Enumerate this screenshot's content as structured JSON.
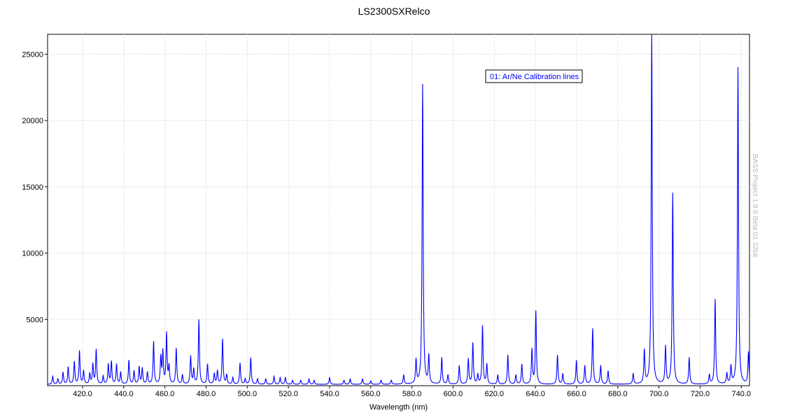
{
  "chart_data": {
    "type": "line",
    "title": "LS2300SXRelco",
    "xlabel": "Wavelength (nm)",
    "ylabel": "",
    "xlim": [
      403,
      744
    ],
    "ylim": [
      0,
      26500
    ],
    "x_ticks": [
      420,
      440,
      460,
      480,
      500,
      520,
      540,
      560,
      580,
      600,
      620,
      640,
      660,
      680,
      700,
      720,
      740
    ],
    "x_tick_labels": [
      "420.0",
      "440.0",
      "460.0",
      "480.0",
      "500.0",
      "520.0",
      "540.0",
      "560.0",
      "580.0",
      "600.0",
      "620.0",
      "640.0",
      "660.0",
      "680.0",
      "700.0",
      "720.0",
      "740.0"
    ],
    "y_ticks": [
      5000,
      10000,
      15000,
      20000,
      25000
    ],
    "y_tick_labels": [
      "5000",
      "10000",
      "15000",
      "20000",
      "25000"
    ],
    "grid": true,
    "legend_position": "top-right",
    "series": [
      {
        "name": "01: Ar/Ne Calibration lines",
        "color": "#0000ff",
        "peaks": [
          [
            405.5,
            600
          ],
          [
            408.0,
            400
          ],
          [
            410.5,
            900
          ],
          [
            413.0,
            1300
          ],
          [
            416.0,
            1700
          ],
          [
            418.5,
            2500
          ],
          [
            420.5,
            1000
          ],
          [
            423.5,
            800
          ],
          [
            425.0,
            1500
          ],
          [
            426.6,
            2600
          ],
          [
            430.0,
            600
          ],
          [
            432.5,
            1500
          ],
          [
            434.0,
            1700
          ],
          [
            436.5,
            1500
          ],
          [
            438.5,
            900
          ],
          [
            442.5,
            1800
          ],
          [
            445.0,
            1000
          ],
          [
            447.5,
            1300
          ],
          [
            449.0,
            1200
          ],
          [
            451.5,
            900
          ],
          [
            454.5,
            3200
          ],
          [
            458.0,
            2000
          ],
          [
            459.0,
            2400
          ],
          [
            460.8,
            3800
          ],
          [
            462.0,
            1300
          ],
          [
            465.5,
            2700
          ],
          [
            468.5,
            700
          ],
          [
            472.5,
            2100
          ],
          [
            474.0,
            1100
          ],
          [
            476.5,
            4850
          ],
          [
            480.7,
            1500
          ],
          [
            484.0,
            800
          ],
          [
            485.5,
            1000
          ],
          [
            488.0,
            3400
          ],
          [
            490.0,
            700
          ],
          [
            493.0,
            500
          ],
          [
            496.5,
            1600
          ],
          [
            499.0,
            400
          ],
          [
            501.7,
            2000
          ],
          [
            505.0,
            400
          ],
          [
            509.0,
            400
          ],
          [
            513.0,
            600
          ],
          [
            516.0,
            500
          ],
          [
            518.5,
            500
          ],
          [
            522.0,
            300
          ],
          [
            526.0,
            300
          ],
          [
            530.0,
            400
          ],
          [
            532.5,
            300
          ],
          [
            540.0,
            500
          ],
          [
            547.0,
            300
          ],
          [
            550.0,
            400
          ],
          [
            556.0,
            400
          ],
          [
            560.0,
            250
          ],
          [
            565.0,
            300
          ],
          [
            570.0,
            300
          ],
          [
            576.0,
            700
          ],
          [
            582.0,
            1800
          ],
          [
            585.2,
            22600
          ],
          [
            588.2,
            2100
          ],
          [
            594.5,
            2000
          ],
          [
            597.5,
            700
          ],
          [
            603.0,
            1400
          ],
          [
            607.4,
            1900
          ],
          [
            609.6,
            3100
          ],
          [
            612.0,
            700
          ],
          [
            614.3,
            4400
          ],
          [
            616.4,
            1500
          ],
          [
            621.7,
            700
          ],
          [
            626.6,
            2200
          ],
          [
            630.5,
            700
          ],
          [
            633.4,
            1500
          ],
          [
            638.3,
            2600
          ],
          [
            640.2,
            5500
          ],
          [
            650.7,
            2200
          ],
          [
            653.3,
            800
          ],
          [
            659.9,
            1800
          ],
          [
            664.0,
            1400
          ],
          [
            667.8,
            4200
          ],
          [
            671.7,
            1400
          ],
          [
            675.3,
            1000
          ],
          [
            687.5,
            800
          ],
          [
            692.9,
            2500
          ],
          [
            696.5,
            26500
          ],
          [
            703.2,
            2800
          ],
          [
            706.7,
            14400
          ],
          [
            714.7,
            2000
          ],
          [
            724.5,
            700
          ],
          [
            727.3,
            6400
          ],
          [
            733.0,
            800
          ],
          [
            735.0,
            1300
          ],
          [
            738.4,
            23900
          ],
          [
            743.5,
            2400
          ]
        ]
      }
    ]
  },
  "watermark": "BASS Project 1.9.9 Beta 01 32bit"
}
